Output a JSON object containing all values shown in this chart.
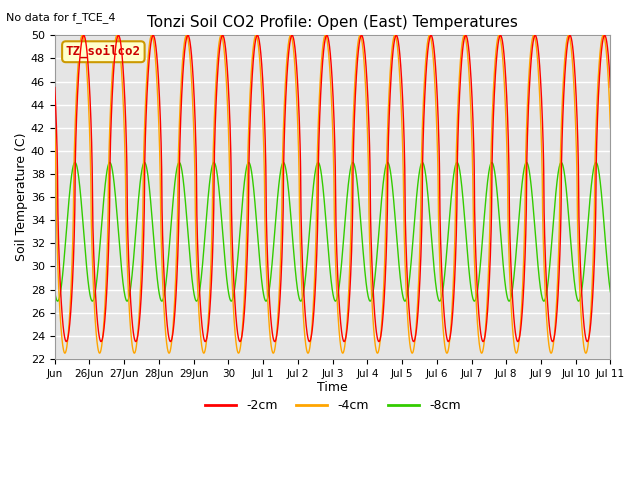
{
  "title": "Tonzi Soil CO2 Profile: Open (East) Temperatures",
  "subtitle": "No data for f_TCE_4",
  "xlabel": "Time",
  "ylabel": "Soil Temperature (C)",
  "ylim": [
    22,
    50
  ],
  "yticks": [
    22,
    24,
    26,
    28,
    30,
    32,
    34,
    36,
    38,
    40,
    42,
    44,
    46,
    48,
    50
  ],
  "legend_labels": [
    "-2cm",
    "-4cm",
    "-8cm"
  ],
  "legend_colors": [
    "#ff0000",
    "#ffa500",
    "#33cc00"
  ],
  "line_colors": [
    "#ff0000",
    "#ffa500",
    "#33cc00"
  ],
  "inset_label": "TZ_soilco2",
  "inset_bg": "#ffffcc",
  "inset_border": "#cc9900",
  "background_color": "#e5e5e5",
  "xtick_positions": [
    0,
    1,
    2,
    3,
    4,
    5,
    6,
    7,
    8,
    9,
    10,
    11,
    12,
    13,
    14,
    15,
    16
  ],
  "xtick_labels": [
    "Jun",
    "26Jun",
    "27Jun",
    "28Jun",
    "29Jun",
    "30",
    "Jul 1",
    "Jul 2",
    "Jul 3",
    "Jul 4",
    "Jul 5",
    "Jul 6",
    "Jul 7",
    "Jul 8",
    "Jul 9",
    "Jul 10",
    "Jul 11"
  ],
  "num_days": 16.0,
  "xstart": 0,
  "period_hours": 24,
  "mid_2cm": 36.75,
  "amp_2cm": 13.25,
  "mid_4cm": 36.25,
  "amp_4cm": 13.75,
  "mid_8cm": 33.0,
  "amp_8cm": 6.0,
  "phase_2cm_hours": 14.0,
  "phase_4cm_hours": 13.0,
  "phase_8cm_hours": 8.0,
  "sharp_power": 0.6
}
